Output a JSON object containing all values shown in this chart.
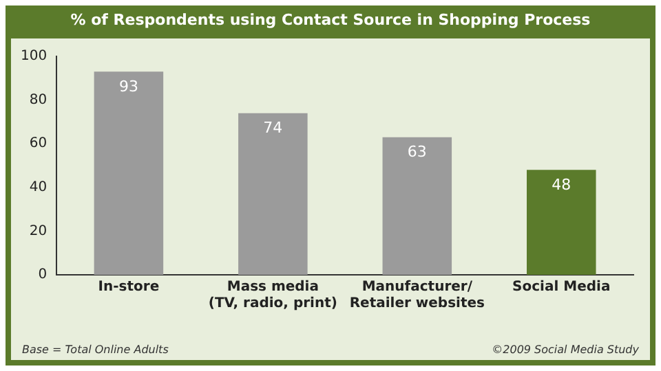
{
  "chart_data": {
    "type": "bar",
    "title": "% of Respondents using Contact Source in Shopping Process",
    "categories": [
      "In-store",
      "Mass media\n(TV, radio, print)",
      "Manufacturer/\nRetailer websites",
      "Social Media"
    ],
    "values": [
      93,
      74,
      63,
      48
    ],
    "colors": [
      "#9b9b9b",
      "#9b9b9b",
      "#9b9b9b",
      "#5b7b2b"
    ],
    "ylim": [
      0,
      100
    ],
    "yticks": [
      0,
      20,
      40,
      60,
      80,
      100
    ],
    "grid": false,
    "data_labels": true,
    "annotations": [
      "Base = Total Online Adults",
      "©2009 Social Media Study"
    ]
  }
}
